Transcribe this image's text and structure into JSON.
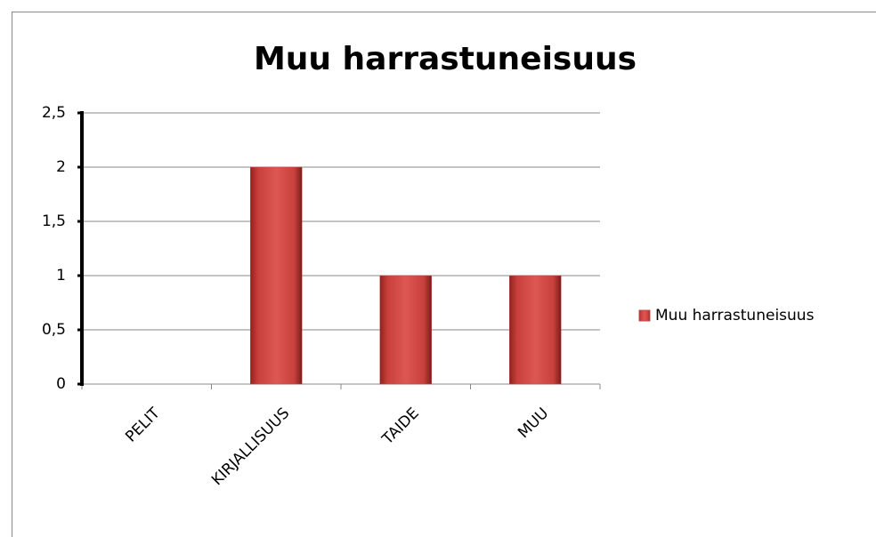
{
  "chart_data": {
    "type": "bar",
    "title": "Muu harrastuneisuus",
    "categories": [
      "PELIT",
      "KIRJALLISUUS",
      "TAIDE",
      "MUU"
    ],
    "series": [
      {
        "name": "Muu harrastuneisuus",
        "color": "#c0504d",
        "values": [
          0,
          2,
          1,
          1
        ]
      }
    ],
    "ylim": [
      0,
      2.5
    ],
    "yticks": [
      0,
      {
        "value": 0.5,
        "label": "0,5"
      },
      1,
      {
        "value": 1.5,
        "label": "1,5"
      },
      2,
      {
        "value": 2.5,
        "label": "2,5"
      }
    ],
    "grid": true,
    "legend": "right"
  }
}
